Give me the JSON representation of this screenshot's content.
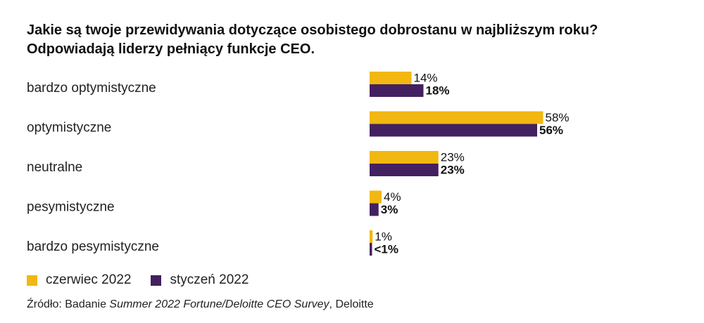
{
  "title_line1": "Jakie są twoje przewidywania dotyczące osobistego dobrostanu w najbliższym roku?",
  "title_line2": "Odpowiadają liderzy pełniący funkcje CEO.",
  "source": {
    "prefix": "Źródło: Badanie ",
    "italic": "Summer 2022 Fortune/Deloitte CEO Survey",
    "suffix": ", Deloitte"
  },
  "chart_data": {
    "type": "bar",
    "orientation": "horizontal",
    "categories": [
      "bardzo optymistyczne",
      "optymistyczne",
      "neutralne",
      "pesymistyczne",
      "bardzo pesymistyczne"
    ],
    "series": [
      {
        "name": "czerwiec 2022",
        "color": "#f2b711",
        "values": [
          14,
          58,
          23,
          4,
          1
        ],
        "labels": [
          "14%",
          "58%",
          "23%",
          "4%",
          "1%"
        ]
      },
      {
        "name": "styczeń 2022",
        "color": "#432060",
        "values": [
          18,
          56,
          23,
          3,
          0.5
        ],
        "labels": [
          "18%",
          "56%",
          "23%",
          "3%",
          "<1%"
        ]
      }
    ],
    "xlim": [
      0,
      100
    ],
    "grid": false,
    "legend": "bottom-left"
  }
}
